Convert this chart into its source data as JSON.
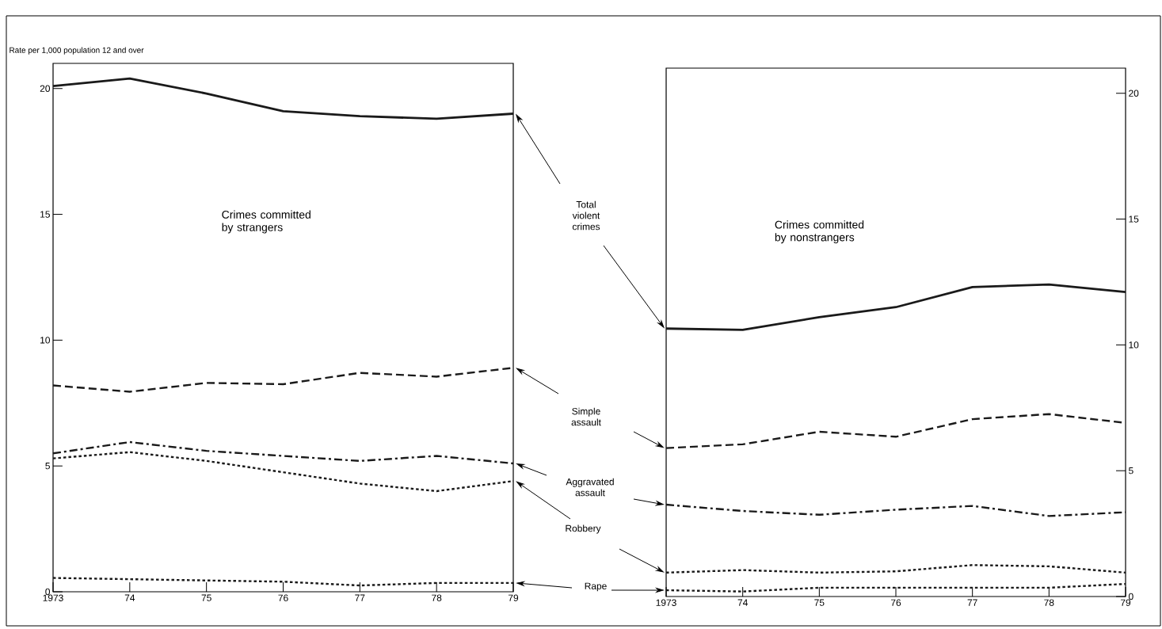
{
  "chart_data": [
    {
      "type": "line",
      "title": "Crimes committed by strangers",
      "ylabel": "Rate per 1,000 population 12 and over",
      "x": [
        1973,
        1974,
        1975,
        1976,
        1977,
        1978,
        1979
      ],
      "xlim": [
        1973,
        1979
      ],
      "xticks": [
        1973,
        {
          "value": 1974,
          "label": "74"
        },
        {
          "value": 1975,
          "label": "75"
        },
        {
          "value": 1976,
          "label": "76"
        },
        {
          "value": 1977,
          "label": "77"
        },
        {
          "value": 1978,
          "label": "78"
        },
        {
          "value": 1979,
          "label": "79"
        }
      ],
      "ylim": [
        0,
        21
      ],
      "yticks": [
        0,
        5,
        10,
        15,
        20
      ],
      "series": [
        {
          "name": "Total violent crimes",
          "color": "#1a1a1a",
          "line_style": "solid",
          "values": [
            20.1,
            20.4,
            19.8,
            19.1,
            18.9,
            18.8,
            19.0
          ]
        },
        {
          "name": "Simple assault",
          "color": "#1a1a1a",
          "line_style": "dashed",
          "values": [
            8.2,
            7.95,
            8.3,
            8.25,
            8.7,
            8.55,
            8.9
          ]
        },
        {
          "name": "Aggravated assault",
          "color": "#1a1a1a",
          "line_style": "dashdot",
          "values": [
            5.5,
            5.95,
            5.6,
            5.4,
            5.2,
            5.4,
            5.1
          ]
        },
        {
          "name": "Robbery",
          "color": "#1a1a1a",
          "line_style": "dotted",
          "values": [
            5.3,
            5.55,
            5.2,
            4.75,
            4.3,
            4.0,
            4.4
          ]
        },
        {
          "name": "Rape",
          "color": "#1a1a1a",
          "line_style": "dotted",
          "values": [
            0.55,
            0.5,
            0.45,
            0.4,
            0.25,
            0.35,
            0.35
          ]
        }
      ]
    },
    {
      "type": "line",
      "title": "Crimes committed by nonstrangers",
      "x": [
        1973,
        1974,
        1975,
        1976,
        1977,
        1978,
        1979
      ],
      "xlim": [
        1973,
        1979
      ],
      "xticks": [
        1973,
        {
          "value": 1974,
          "label": "74"
        },
        {
          "value": 1975,
          "label": "75"
        },
        {
          "value": 1976,
          "label": "76"
        },
        {
          "value": 1977,
          "label": "77"
        },
        {
          "value": 1978,
          "label": "78"
        },
        {
          "value": 1979,
          "label": "79"
        }
      ],
      "ylim": [
        0,
        21
      ],
      "yticks": [
        0,
        5,
        10,
        15,
        20
      ],
      "series": [
        {
          "color": "#1a1a1a",
          "line_style": "solid",
          "values": [
            10.65,
            10.6,
            11.1,
            11.5,
            12.3,
            12.4,
            12.1
          ]
        },
        {
          "color": "#1a1a1a",
          "line_style": "dashed",
          "values": [
            5.9,
            6.05,
            6.55,
            6.35,
            7.05,
            7.25,
            6.9
          ]
        },
        {
          "color": "#1a1a1a",
          "line_style": "dashdot",
          "values": [
            3.65,
            3.4,
            3.25,
            3.45,
            3.6,
            3.2,
            3.35
          ]
        },
        {
          "color": "#1a1a1a",
          "line_style": "dotted",
          "values": [
            0.95,
            1.05,
            0.95,
            1.0,
            1.25,
            1.2,
            0.95
          ]
        },
        {
          "color": "#1a1a1a",
          "line_style": "dotted",
          "values": [
            0.25,
            0.2,
            0.35,
            0.35,
            0.35,
            0.35,
            0.5
          ]
        }
      ]
    }
  ]
}
